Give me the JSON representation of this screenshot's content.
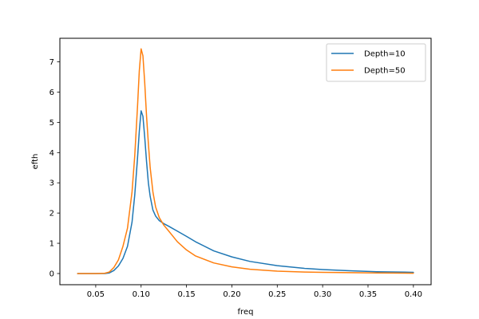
{
  "chart_data": {
    "type": "line",
    "title": "",
    "xlabel": "freq",
    "ylabel": "efth",
    "xlim": [
      0.0105,
      0.4195
    ],
    "ylim": [
      -0.37,
      7.78
    ],
    "xticks": [
      "0.05",
      "0.10",
      "0.15",
      "0.20",
      "0.25",
      "0.30",
      "0.35",
      "0.40"
    ],
    "yticks": [
      "0",
      "1",
      "2",
      "3",
      "4",
      "5",
      "6",
      "7"
    ],
    "grid": false,
    "legend_position": "top-right",
    "series": [
      {
        "name": "Depth=10",
        "color": "#1f77b4",
        "x": [
          0.03,
          0.05,
          0.06,
          0.065,
          0.07,
          0.075,
          0.08,
          0.085,
          0.09,
          0.093,
          0.096,
          0.098,
          0.1,
          0.102,
          0.104,
          0.106,
          0.108,
          0.11,
          0.113,
          0.116,
          0.12,
          0.125,
          0.13,
          0.14,
          0.15,
          0.16,
          0.18,
          0.2,
          0.22,
          0.25,
          0.28,
          0.3,
          0.33,
          0.36,
          0.4
        ],
        "y": [
          0.0,
          0.0,
          0.0,
          0.02,
          0.1,
          0.25,
          0.5,
          0.9,
          1.7,
          2.6,
          3.8,
          4.7,
          5.38,
          5.2,
          4.5,
          3.7,
          3.0,
          2.55,
          2.1,
          1.9,
          1.75,
          1.65,
          1.57,
          1.4,
          1.23,
          1.05,
          0.75,
          0.55,
          0.4,
          0.26,
          0.17,
          0.13,
          0.09,
          0.06,
          0.04
        ]
      },
      {
        "name": "Depth=50",
        "color": "#ff7f0e",
        "x": [
          0.03,
          0.05,
          0.06,
          0.065,
          0.07,
          0.075,
          0.08,
          0.085,
          0.09,
          0.093,
          0.096,
          0.098,
          0.1,
          0.102,
          0.104,
          0.106,
          0.108,
          0.11,
          0.113,
          0.116,
          0.12,
          0.125,
          0.13,
          0.14,
          0.15,
          0.16,
          0.18,
          0.2,
          0.22,
          0.25,
          0.28,
          0.3,
          0.33,
          0.36,
          0.4
        ],
        "y": [
          0.0,
          0.0,
          0.01,
          0.05,
          0.2,
          0.45,
          0.9,
          1.5,
          2.7,
          3.9,
          5.5,
          6.7,
          7.43,
          7.2,
          6.3,
          5.2,
          4.3,
          3.5,
          2.7,
          2.2,
          1.85,
          1.6,
          1.42,
          1.05,
          0.78,
          0.58,
          0.35,
          0.22,
          0.14,
          0.08,
          0.05,
          0.04,
          0.03,
          0.02,
          0.01
        ]
      }
    ]
  }
}
